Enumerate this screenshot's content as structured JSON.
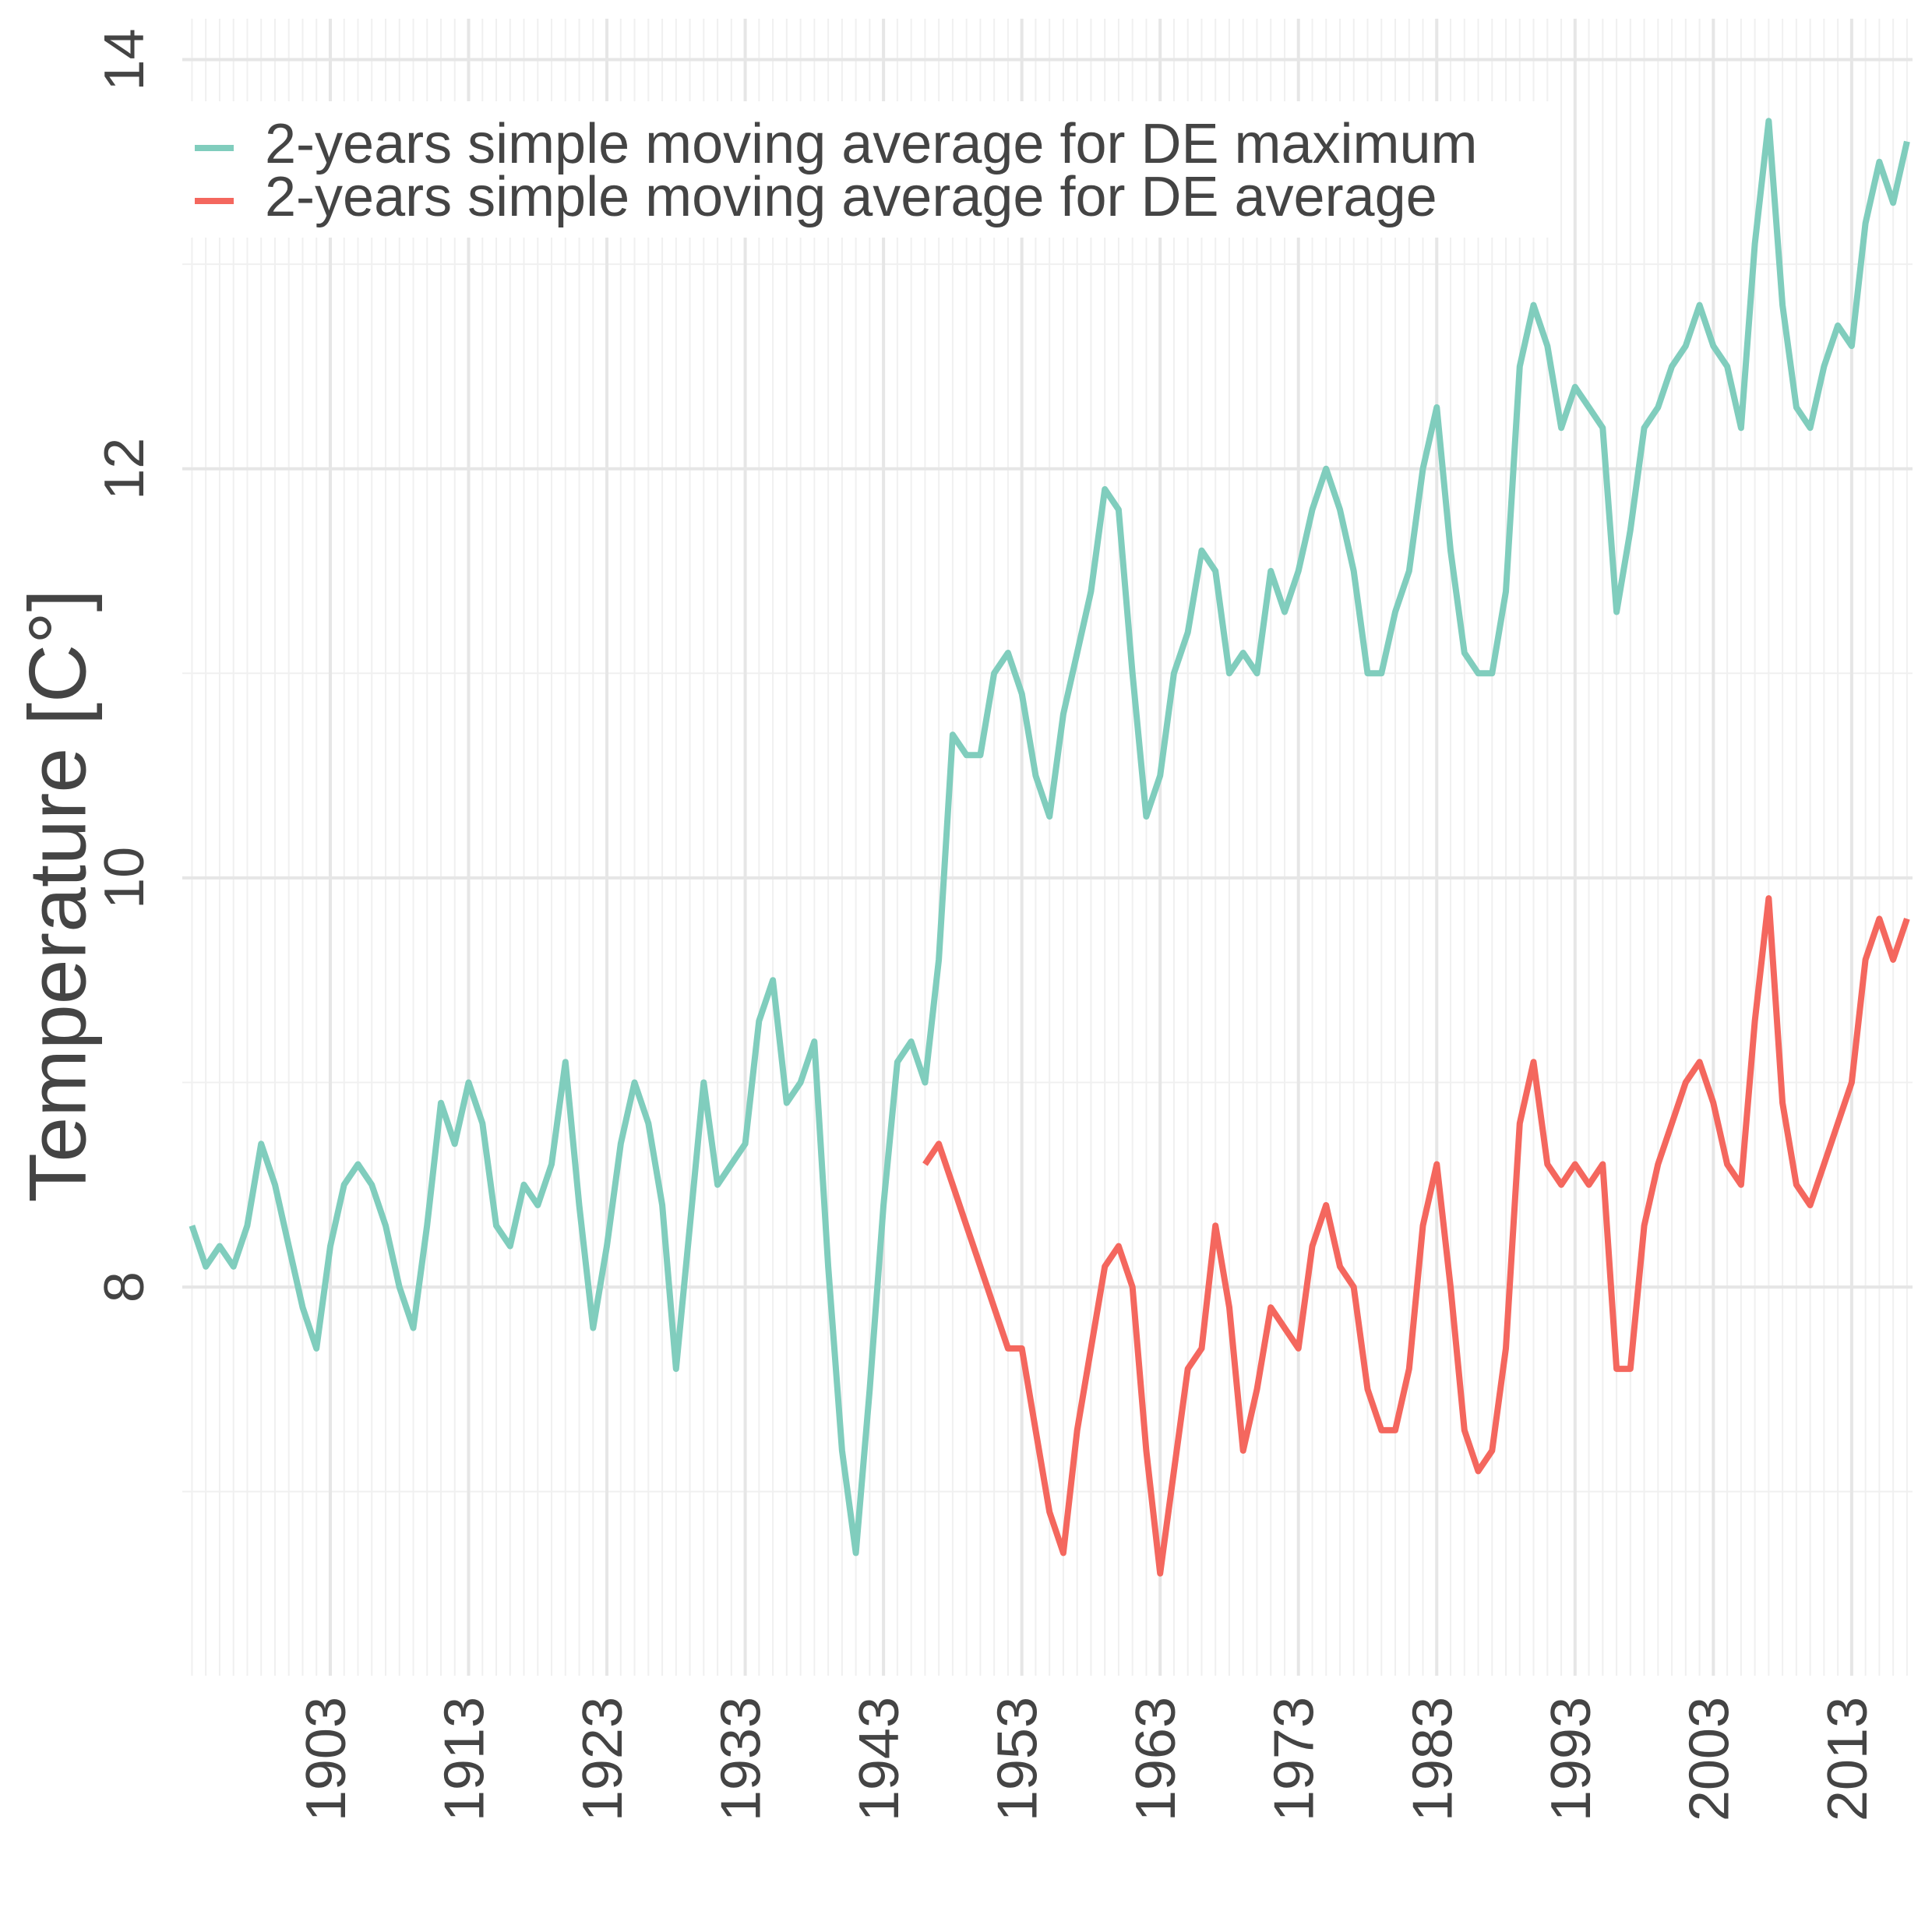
{
  "chart_data": {
    "type": "line",
    "ylabel": "Temperature [C°]",
    "x": [
      1893,
      1894,
      1895,
      1896,
      1897,
      1898,
      1899,
      1900,
      1901,
      1902,
      1903,
      1904,
      1905,
      1906,
      1907,
      1908,
      1909,
      1910,
      1911,
      1912,
      1913,
      1914,
      1915,
      1916,
      1917,
      1918,
      1919,
      1920,
      1921,
      1922,
      1923,
      1924,
      1925,
      1926,
      1927,
      1928,
      1929,
      1930,
      1931,
      1932,
      1933,
      1934,
      1935,
      1936,
      1937,
      1938,
      1939,
      1940,
      1941,
      1942,
      1943,
      1944,
      1945,
      1946,
      1947,
      1948,
      1949,
      1950,
      1951,
      1952,
      1953,
      1954,
      1955,
      1956,
      1957,
      1958,
      1959,
      1960,
      1961,
      1962,
      1963,
      1964,
      1965,
      1966,
      1967,
      1968,
      1969,
      1970,
      1971,
      1972,
      1973,
      1974,
      1975,
      1976,
      1977,
      1978,
      1979,
      1980,
      1981,
      1982,
      1983,
      1984,
      1985,
      1986,
      1987,
      1988,
      1989,
      1990,
      1991,
      1992,
      1993,
      1994,
      1995,
      1996,
      1997,
      1998,
      1999,
      2000,
      2001,
      2002,
      2003,
      2004,
      2005,
      2006,
      2007,
      2008,
      2009,
      2010,
      2011,
      2012,
      2013,
      2014,
      2015,
      2016,
      2017
    ],
    "series": [
      {
        "name": "2-years simple moving average for DE maximum",
        "color": "#80cdbd",
        "values": [
          8.3,
          8.1,
          8.2,
          8.1,
          8.3,
          8.7,
          8.5,
          8.2,
          7.9,
          7.7,
          8.2,
          8.5,
          8.6,
          8.5,
          8.3,
          8.0,
          7.8,
          8.3,
          8.9,
          8.7,
          9.0,
          8.8,
          8.3,
          8.2,
          8.5,
          8.4,
          8.6,
          9.1,
          8.4,
          7.8,
          8.2,
          8.7,
          9.0,
          8.8,
          8.4,
          7.6,
          8.3,
          9.0,
          8.5,
          8.6,
          8.7,
          9.3,
          9.5,
          8.9,
          9.0,
          9.2,
          8.1,
          7.2,
          6.7,
          7.5,
          8.4,
          9.1,
          9.2,
          9.0,
          9.6,
          10.7,
          10.6,
          10.6,
          11.0,
          11.1,
          10.9,
          10.5,
          10.3,
          10.8,
          11.1,
          11.4,
          11.9,
          11.8,
          11.0,
          10.3,
          10.5,
          11.0,
          11.2,
          11.6,
          11.5,
          11.0,
          11.1,
          11.0,
          11.5,
          11.3,
          11.5,
          11.8,
          12.0,
          11.8,
          11.5,
          11.0,
          11.0,
          11.3,
          11.5,
          12.0,
          12.3,
          11.6,
          11.1,
          11.0,
          11.0,
          11.4,
          12.5,
          12.8,
          12.6,
          12.2,
          12.4,
          12.3,
          12.2,
          11.3,
          11.7,
          12.2,
          12.3,
          12.5,
          12.6,
          12.8,
          12.6,
          12.5,
          12.2,
          13.1,
          13.7,
          12.8,
          12.3,
          12.2,
          12.5,
          12.7,
          12.6,
          13.2,
          13.5,
          13.3,
          13.6
        ]
      },
      {
        "name": "2-years simple moving average for DE average",
        "color": "#f4675e",
        "values": [
          null,
          null,
          null,
          null,
          null,
          null,
          null,
          null,
          null,
          null,
          null,
          null,
          null,
          null,
          null,
          null,
          null,
          null,
          null,
          null,
          null,
          null,
          null,
          null,
          null,
          null,
          null,
          null,
          null,
          null,
          null,
          null,
          null,
          null,
          null,
          null,
          null,
          null,
          null,
          null,
          null,
          null,
          null,
          null,
          null,
          null,
          null,
          null,
          null,
          null,
          null,
          null,
          null,
          8.6,
          8.7,
          8.5,
          8.3,
          8.1,
          7.9,
          7.7,
          7.7,
          7.3,
          6.9,
          6.7,
          7.3,
          7.7,
          8.1,
          8.2,
          8.0,
          7.2,
          6.6,
          7.1,
          7.6,
          7.7,
          8.3,
          7.9,
          7.2,
          7.5,
          7.9,
          7.8,
          7.7,
          8.2,
          8.4,
          8.1,
          8.0,
          7.5,
          7.3,
          7.3,
          7.6,
          8.3,
          8.6,
          8.0,
          7.3,
          7.1,
          7.2,
          7.7,
          8.8,
          9.1,
          8.6,
          8.5,
          8.6,
          8.5,
          8.6,
          7.6,
          7.6,
          8.3,
          8.6,
          8.8,
          9.0,
          9.1,
          8.9,
          8.6,
          8.5,
          9.3,
          9.9,
          8.9,
          8.5,
          8.4,
          8.6,
          8.8,
          9.0,
          9.6,
          9.8,
          9.6,
          9.8
        ]
      }
    ],
    "xlim": [
      1892.3,
      2017.4
    ],
    "xticks": [
      1903,
      1913,
      1923,
      1933,
      1943,
      1953,
      1963,
      1973,
      1983,
      1993,
      2003,
      2013
    ],
    "ylim": [
      6.1,
      14.2
    ],
    "yticks": [
      8,
      10,
      12,
      14
    ],
    "grid": true,
    "legend": "top-left"
  }
}
